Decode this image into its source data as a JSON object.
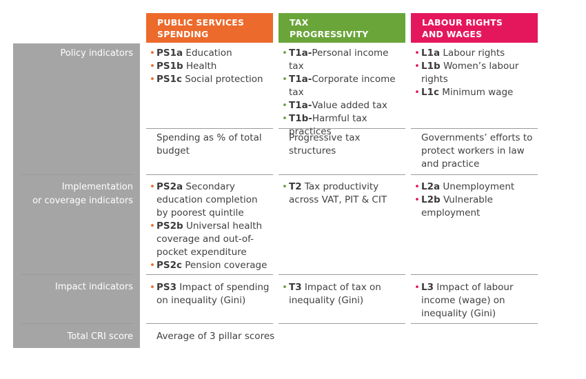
{
  "headers": [
    {
      "line1": "PUBLIC SERVICES",
      "line2": "SPENDING",
      "color": "#ec6a2b"
    },
    {
      "line1": "TAX",
      "line2": "PROGRESSIVITY",
      "color": "#6aa53a"
    },
    {
      "line1": "LABOUR RIGHTS",
      "line2": "AND WAGES",
      "color": "#e5175c"
    }
  ],
  "row_labels": {
    "policy": "Policy indicators",
    "implementation_1": "Implementation",
    "implementation_2": "or coverage indicators",
    "impact": "Impact indicators",
    "total": "Total CRI score"
  },
  "policy": {
    "ps": [
      {
        "code": "PS1a",
        "text": " Education"
      },
      {
        "code": "PS1b",
        "text": " Health"
      },
      {
        "code": "PS1c",
        "text": " Social protection"
      }
    ],
    "tx": [
      {
        "code": "T1a-",
        "text": "Personal income tax"
      },
      {
        "code": "T1a-",
        "text": "Corporate income tax"
      },
      {
        "code": "T1a-",
        "text": "Value added tax"
      },
      {
        "code": "T1b-",
        "text": "Harmful tax practices"
      }
    ],
    "lb": [
      {
        "code": "L1a",
        "text": " Labour rights"
      },
      {
        "code": "L1b",
        "text": " Women’s labour rights"
      },
      {
        "code": "L1c",
        "text": " Minimum wage"
      }
    ]
  },
  "policy_summary": {
    "ps": "Spending as % of total budget",
    "tx": "Progressive tax structures",
    "lb": "Governments’ efforts to protect workers in law and practice"
  },
  "implementation": {
    "ps": [
      {
        "code": "PS2a",
        "text": " Secondary education completion by poorest quintile"
      },
      {
        "code": "PS2b",
        "text": " Universal health coverage and out-of-pocket expenditure"
      },
      {
        "code": "PS2c",
        "text": " Pension coverage"
      }
    ],
    "tx": [
      {
        "code": "T2",
        "text": " Tax productivity across VAT, PIT & CIT"
      }
    ],
    "lb": [
      {
        "code": "L2a",
        "text": " Unemployment"
      },
      {
        "code": "L2b",
        "text": " Vulnerable employment"
      }
    ]
  },
  "impact": {
    "ps": [
      {
        "code": "PS3",
        "text": " Impact of spending on inequality (Gini)"
      }
    ],
    "tx": [
      {
        "code": "T3",
        "text": " Impact of tax on inequality (Gini)"
      }
    ],
    "lb": [
      {
        "code": "L3",
        "text": " Impact of labour income (wage) on inequality (Gini)"
      }
    ]
  },
  "total": "Average of 3 pillar scores"
}
